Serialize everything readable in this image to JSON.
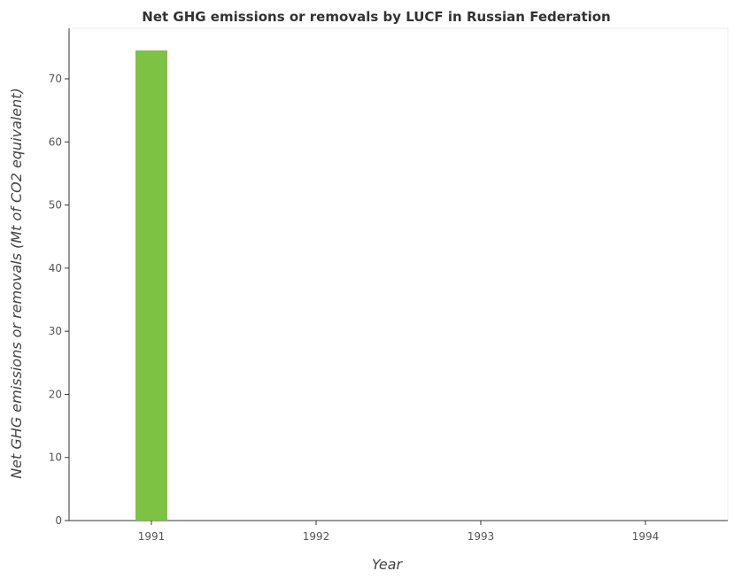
{
  "chart_data": {
    "type": "bar",
    "title": "Net GHG emissions or removals by LUCF in Russian Federation",
    "xlabel": "Year",
    "ylabel": "Net GHG emissions or removals (Mt of CO2 equivalent)",
    "categories": [
      "1991",
      "1992",
      "1993",
      "1994"
    ],
    "values": [
      74.5,
      0,
      0,
      0
    ],
    "ylim": [
      0,
      78
    ],
    "yticks": [
      0,
      10,
      20,
      30,
      40,
      50,
      60,
      70
    ],
    "ytick_labels": [
      "0",
      "10",
      "20",
      "30",
      "40",
      "50",
      "60",
      "70"
    ],
    "grid": false,
    "legend": "none",
    "bar_color": "#7dc242",
    "axis_color": "#333333"
  }
}
